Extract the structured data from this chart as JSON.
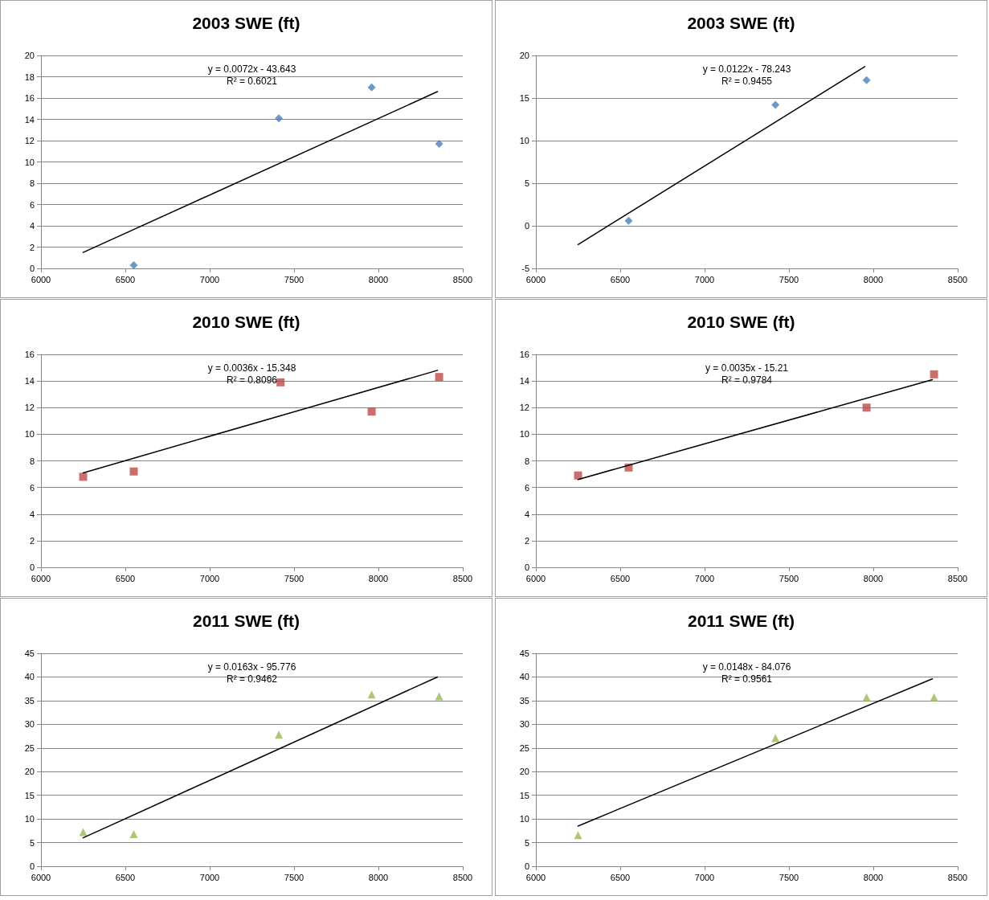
{
  "chart_data": [
    {
      "type": "scatter",
      "title": "2003 SWE (ft)",
      "xlim": [
        6000,
        8500
      ],
      "xticks": [
        6000,
        6500,
        7000,
        7500,
        8000,
        8500
      ],
      "ylim": [
        0,
        20
      ],
      "yticks": [
        0,
        2,
        4,
        6,
        8,
        10,
        12,
        14,
        16,
        18,
        20
      ],
      "grid": "y",
      "series": [
        {
          "marker": "diamond",
          "color": "#4a7ebb",
          "x": [
            6550,
            7410,
            7960,
            8360
          ],
          "values": [
            0.3,
            14.1,
            17.0,
            11.7
          ]
        },
        {
          "type": "line",
          "marker": "none",
          "line_style": "solid",
          "color": "#000000",
          "x": [
            6250,
            8350
          ],
          "values": [
            1.5,
            16.6
          ]
        }
      ],
      "annotations": [
        "y = 0.0072x - 43.643\nR² = 0.6021"
      ]
    },
    {
      "type": "scatter",
      "title": "2003 SWE (ft)",
      "xlim": [
        6000,
        8500
      ],
      "xticks": [
        6000,
        6500,
        7000,
        7500,
        8000,
        8500
      ],
      "ylim": [
        -5,
        20
      ],
      "yticks": [
        -5,
        0,
        5,
        10,
        15,
        20
      ],
      "grid": "y",
      "series": [
        {
          "marker": "diamond",
          "color": "#4a7ebb",
          "x": [
            6550,
            7420,
            7960
          ],
          "values": [
            0.6,
            14.2,
            17.1
          ]
        },
        {
          "type": "line",
          "marker": "none",
          "line_style": "solid",
          "color": "#000000",
          "x": [
            6250,
            7950
          ],
          "values": [
            -2.2,
            18.7
          ]
        }
      ],
      "annotations": [
        "y = 0.0122x - 78.243\nR² = 0.9455"
      ]
    },
    {
      "type": "scatter",
      "title": "2010 SWE (ft)",
      "xlim": [
        6000,
        8500
      ],
      "xticks": [
        6000,
        6500,
        7000,
        7500,
        8000,
        8500
      ],
      "ylim": [
        0,
        16
      ],
      "yticks": [
        0,
        2,
        4,
        6,
        8,
        10,
        12,
        14,
        16
      ],
      "grid": "y",
      "series": [
        {
          "marker": "square",
          "color": "#be4b48",
          "x": [
            6250,
            6550,
            7420,
            7960,
            8360
          ],
          "values": [
            6.8,
            7.2,
            13.9,
            11.7,
            14.3
          ]
        },
        {
          "type": "line",
          "marker": "none",
          "line_style": "solid",
          "color": "#000000",
          "x": [
            6250,
            8350
          ],
          "values": [
            7.1,
            14.8
          ]
        }
      ],
      "annotations": [
        "y = 0.0036x - 15.348\nR² = 0.8096"
      ]
    },
    {
      "type": "scatter",
      "title": "2010 SWE (ft)",
      "xlim": [
        6000,
        8500
      ],
      "xticks": [
        6000,
        6500,
        7000,
        7500,
        8000,
        8500
      ],
      "ylim": [
        0,
        16
      ],
      "yticks": [
        0,
        2,
        4,
        6,
        8,
        10,
        12,
        14,
        16
      ],
      "grid": "y",
      "series": [
        {
          "marker": "square",
          "color": "#be4b48",
          "x": [
            6250,
            6550,
            7960,
            8360
          ],
          "values": [
            6.9,
            7.5,
            12.0,
            14.5
          ]
        },
        {
          "type": "line",
          "marker": "none",
          "line_style": "solid",
          "color": "#000000",
          "x": [
            6250,
            8350
          ],
          "values": [
            6.6,
            14.1
          ]
        }
      ],
      "annotations": [
        "y = 0.0035x - 15.21\nR² = 0.9784"
      ]
    },
    {
      "type": "scatter",
      "title": "2011 SWE (ft)",
      "xlim": [
        6000,
        8500
      ],
      "xticks": [
        6000,
        6500,
        7000,
        7500,
        8000,
        8500
      ],
      "ylim": [
        0,
        45
      ],
      "yticks": [
        0,
        5,
        10,
        15,
        20,
        25,
        30,
        35,
        40,
        45
      ],
      "grid": "y",
      "series": [
        {
          "marker": "triangle",
          "color": "#98b954",
          "x": [
            6250,
            6550,
            7410,
            7960,
            8360
          ],
          "values": [
            7.2,
            6.8,
            27.8,
            36.3,
            35.9
          ]
        },
        {
          "type": "line",
          "marker": "none",
          "line_style": "solid",
          "color": "#000000",
          "x": [
            6250,
            8350
          ],
          "values": [
            6.0,
            40.0
          ]
        }
      ],
      "annotations": [
        "y = 0.0163x - 95.776\nR² = 0.9462"
      ]
    },
    {
      "type": "scatter",
      "title": "2011 SWE (ft)",
      "xlim": [
        6000,
        8500
      ],
      "xticks": [
        6000,
        6500,
        7000,
        7500,
        8000,
        8500
      ],
      "ylim": [
        0,
        45
      ],
      "yticks": [
        0,
        5,
        10,
        15,
        20,
        25,
        30,
        35,
        40,
        45
      ],
      "grid": "y",
      "series": [
        {
          "marker": "triangle",
          "color": "#98b954",
          "x": [
            6250,
            7420,
            7960,
            8360
          ],
          "values": [
            6.6,
            27.1,
            35.7,
            35.7
          ]
        },
        {
          "type": "line",
          "marker": "none",
          "line_style": "solid",
          "color": "#000000",
          "x": [
            6250,
            8350
          ],
          "values": [
            8.5,
            39.6
          ]
        }
      ],
      "annotations": [
        "y = 0.0148x - 84.076\nR² = 0.9561"
      ]
    }
  ]
}
